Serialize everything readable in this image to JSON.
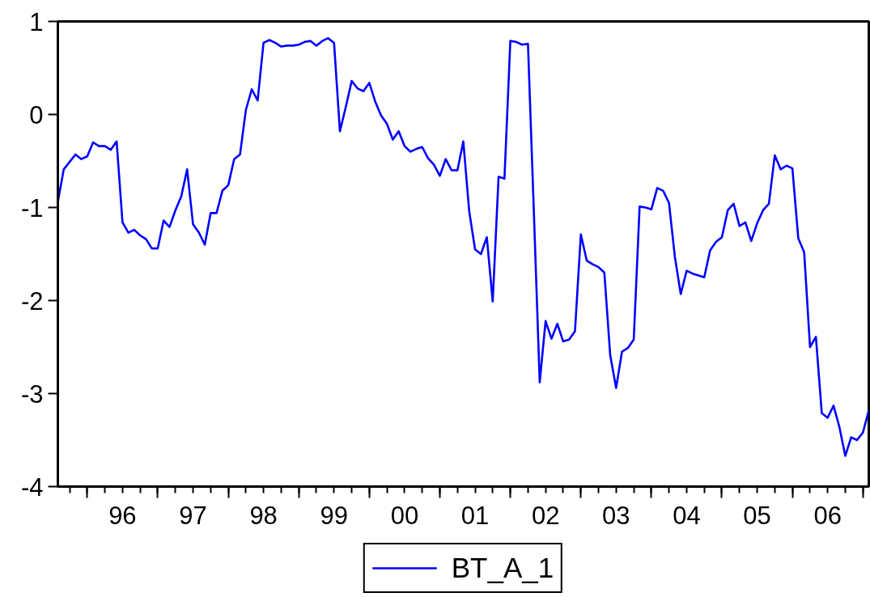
{
  "chart_data": {
    "type": "line",
    "x": [
      "1995-08",
      "1995-09",
      "1995-10",
      "1995-11",
      "1995-12",
      "1996-01",
      "1996-02",
      "1996-03",
      "1996-04",
      "1996-05",
      "1996-06",
      "1996-07",
      "1996-08",
      "1996-09",
      "1996-10",
      "1996-11",
      "1996-12",
      "1997-01",
      "1997-02",
      "1997-03",
      "1997-04",
      "1997-05",
      "1997-06",
      "1997-07",
      "1997-08",
      "1997-09",
      "1997-10",
      "1997-11",
      "1997-12",
      "1998-01",
      "1998-02",
      "1998-03",
      "1998-04",
      "1998-05",
      "1998-06",
      "1998-07",
      "1998-08",
      "1998-09",
      "1998-10",
      "1998-11",
      "1998-12",
      "1999-01",
      "1999-02",
      "1999-03",
      "1999-04",
      "1999-05",
      "1999-06",
      "1999-07",
      "1999-08",
      "1999-09",
      "1999-10",
      "1999-11",
      "1999-12",
      "2000-01",
      "2000-02",
      "2000-03",
      "2000-04",
      "2000-05",
      "2000-06",
      "2000-07",
      "2000-08",
      "2000-09",
      "2000-10",
      "2000-11",
      "2000-12",
      "2001-01",
      "2001-02",
      "2001-03",
      "2001-04",
      "2001-05",
      "2001-06",
      "2001-07",
      "2001-08",
      "2001-09",
      "2001-10",
      "2001-11",
      "2001-12",
      "2002-01",
      "2002-02",
      "2002-03",
      "2002-04",
      "2002-05",
      "2002-06",
      "2002-07",
      "2002-08",
      "2002-09",
      "2002-10",
      "2002-11",
      "2002-12",
      "2003-01",
      "2003-02",
      "2003-03",
      "2003-04",
      "2003-05",
      "2003-06",
      "2003-07",
      "2003-08",
      "2003-09",
      "2003-10",
      "2003-11",
      "2003-12",
      "2004-01",
      "2004-02",
      "2004-03",
      "2004-04",
      "2004-05",
      "2004-06",
      "2004-07",
      "2004-08",
      "2004-09",
      "2004-10",
      "2004-11",
      "2004-12",
      "2005-01",
      "2005-02",
      "2005-03",
      "2005-04",
      "2005-05",
      "2005-06",
      "2005-07",
      "2005-08",
      "2005-09",
      "2005-10",
      "2005-11",
      "2005-12",
      "2006-01",
      "2006-02",
      "2006-03",
      "2006-04",
      "2006-05",
      "2006-06",
      "2006-07",
      "2006-08",
      "2006-09",
      "2006-10",
      "2006-11",
      "2006-12",
      "2007-01",
      "2007-02"
    ],
    "series": [
      {
        "name": "BT_A_1",
        "color": "#0000ff",
        "values": [
          -0.94,
          -0.59,
          -0.51,
          -0.43,
          -0.48,
          -0.45,
          -0.3,
          -0.34,
          -0.34,
          -0.38,
          -0.29,
          -1.16,
          -1.27,
          -1.24,
          -1.3,
          -1.34,
          -1.44,
          -1.44,
          -1.14,
          -1.21,
          -1.03,
          -0.88,
          -0.59,
          -1.18,
          -1.27,
          -1.4,
          -1.06,
          -1.06,
          -0.82,
          -0.76,
          -0.48,
          -0.43,
          0.05,
          0.27,
          0.15,
          0.77,
          0.8,
          0.77,
          0.73,
          0.74,
          0.74,
          0.75,
          0.78,
          0.79,
          0.74,
          0.79,
          0.82,
          0.77,
          -0.18,
          0.08,
          0.36,
          0.28,
          0.25,
          0.34,
          0.14,
          -0.01,
          -0.1,
          -0.27,
          -0.18,
          -0.34,
          -0.4,
          -0.37,
          -0.35,
          -0.47,
          -0.54,
          -0.66,
          -0.48,
          -0.6,
          -0.6,
          -0.29,
          -1.04,
          -1.45,
          -1.5,
          -1.32,
          -2.01,
          -0.67,
          -0.69,
          0.79,
          0.78,
          0.75,
          0.76,
          -1.04,
          -2.88,
          -2.22,
          -2.41,
          -2.25,
          -2.44,
          -2.42,
          -2.33,
          -1.29,
          -1.57,
          -1.61,
          -1.64,
          -1.7,
          -2.59,
          -2.94,
          -2.55,
          -2.51,
          -2.42,
          -0.99,
          -1.0,
          -1.02,
          -0.79,
          -0.82,
          -0.95,
          -1.53,
          -1.93,
          -1.68,
          -1.71,
          -1.73,
          -1.75,
          -1.46,
          -1.37,
          -1.32,
          -1.03,
          -0.96,
          -1.2,
          -1.16,
          -1.36,
          -1.17,
          -1.03,
          -0.96,
          -0.44,
          -0.59,
          -0.55,
          -0.58,
          -1.33,
          -1.48,
          -2.5,
          -2.39,
          -3.21,
          -3.26,
          -3.13,
          -3.36,
          -3.67,
          -3.47,
          -3.5,
          -3.42,
          -3.18
        ]
      }
    ],
    "xlim": [
      "1995-08",
      "2007-02"
    ],
    "xticks": [
      {
        "value": "1995-10",
        "label": null
      },
      {
        "value": "1996-01",
        "label": null
      },
      {
        "value": "1996-04",
        "label": null
      },
      {
        "value": "1996-07",
        "label": "96"
      },
      {
        "value": "1996-10",
        "label": null
      },
      {
        "value": "1997-01",
        "label": null
      },
      {
        "value": "1997-04",
        "label": null
      },
      {
        "value": "1997-07",
        "label": "97"
      },
      {
        "value": "1997-10",
        "label": null
      },
      {
        "value": "1998-01",
        "label": null
      },
      {
        "value": "1998-04",
        "label": null
      },
      {
        "value": "1998-07",
        "label": "98"
      },
      {
        "value": "1998-10",
        "label": null
      },
      {
        "value": "1999-01",
        "label": null
      },
      {
        "value": "1999-04",
        "label": null
      },
      {
        "value": "1999-07",
        "label": "99"
      },
      {
        "value": "1999-10",
        "label": null
      },
      {
        "value": "2000-01",
        "label": null
      },
      {
        "value": "2000-04",
        "label": null
      },
      {
        "value": "2000-07",
        "label": "00"
      },
      {
        "value": "2000-10",
        "label": null
      },
      {
        "value": "2001-01",
        "label": null
      },
      {
        "value": "2001-04",
        "label": null
      },
      {
        "value": "2001-07",
        "label": "01"
      },
      {
        "value": "2001-10",
        "label": null
      },
      {
        "value": "2002-01",
        "label": null
      },
      {
        "value": "2002-04",
        "label": null
      },
      {
        "value": "2002-07",
        "label": "02"
      },
      {
        "value": "2002-10",
        "label": null
      },
      {
        "value": "2003-01",
        "label": null
      },
      {
        "value": "2003-04",
        "label": null
      },
      {
        "value": "2003-07",
        "label": "03"
      },
      {
        "value": "2003-10",
        "label": null
      },
      {
        "value": "2004-01",
        "label": null
      },
      {
        "value": "2004-04",
        "label": null
      },
      {
        "value": "2004-07",
        "label": "04"
      },
      {
        "value": "2004-10",
        "label": null
      },
      {
        "value": "2005-01",
        "label": null
      },
      {
        "value": "2005-04",
        "label": null
      },
      {
        "value": "2005-07",
        "label": "05"
      },
      {
        "value": "2005-10",
        "label": null
      },
      {
        "value": "2006-01",
        "label": null
      },
      {
        "value": "2006-04",
        "label": null
      },
      {
        "value": "2006-07",
        "label": "06"
      },
      {
        "value": "2006-10",
        "label": null
      },
      {
        "value": "2007-01",
        "label": null
      }
    ],
    "ylim": [
      -4,
      1
    ],
    "yticks": [
      -4,
      -3,
      -2,
      -1,
      0,
      1
    ],
    "grid": false,
    "legend": "bottom",
    "line_style": "solid",
    "marker": "none"
  }
}
